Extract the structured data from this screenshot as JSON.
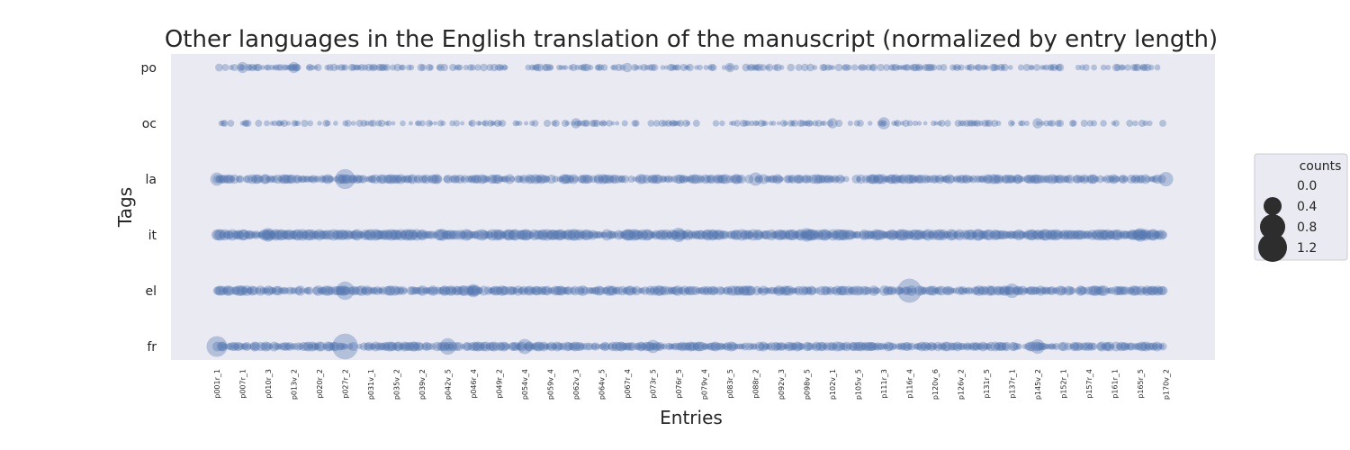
{
  "chart_data": {
    "type": "scatter",
    "title": "Other languages in the English translation of the manuscript (normalized by entry length)",
    "xlabel": "Entries",
    "ylabel": "Tags",
    "categories_y": [
      "po",
      "oc",
      "la",
      "it",
      "el",
      "fr"
    ],
    "x_tick_labels": [
      "p001r_1",
      "p007r_1",
      "p010r_3",
      "p013v_2",
      "p020r_2",
      "p027r_2",
      "p031v_1",
      "p035v_2",
      "p039v_2",
      "p042v_5",
      "p046r_4",
      "p049r_2",
      "p054v_4",
      "p059v_4",
      "p062v_3",
      "p064v_5",
      "p067r_4",
      "p073r_5",
      "p076r_5",
      "p079v_4",
      "p083r_5",
      "p088r_2",
      "p092v_3",
      "p098v_5",
      "p102v_1",
      "p105v_5",
      "p111r_3",
      "p116r_4",
      "p120v_6",
      "p126v_2",
      "p131r_5",
      "p137r_1",
      "p145v_2",
      "p152r_1",
      "p157r_4",
      "p161r_1",
      "p165r_5",
      "p170v_2"
    ],
    "legend": {
      "title": "counts",
      "placement": "right",
      "entries": [
        {
          "label": "0.0",
          "value": 0.0
        },
        {
          "label": "0.4",
          "value": 0.4
        },
        {
          "label": "0.8",
          "value": 0.8
        },
        {
          "label": "1.2",
          "value": 1.2
        }
      ]
    },
    "marker_color": "#4c72b0",
    "background_color": "#eaeaf2",
    "grid": false,
    "series": [
      {
        "tag": "po",
        "density": 0.55,
        "typical": 0.06,
        "highlights": [
          {
            "tick": "p007r_1",
            "value": 0.12
          },
          {
            "tick": "p013v_2",
            "value": 0.12
          },
          {
            "tick": "p067r_4",
            "value": 0.08
          },
          {
            "tick": "p083r_5",
            "value": 0.08
          }
        ]
      },
      {
        "tag": "oc",
        "density": 0.4,
        "typical": 0.05,
        "highlights": [
          {
            "tick": "p062v_3",
            "value": 0.1
          },
          {
            "tick": "p111r_3",
            "value": 0.16
          },
          {
            "tick": "p145v_2",
            "value": 0.1
          },
          {
            "tick": "p102v_1",
            "value": 0.1
          }
        ]
      },
      {
        "tag": "la",
        "density": 0.85,
        "typical": 0.12,
        "highlights": [
          {
            "tick": "p001r_1",
            "value": 0.2
          },
          {
            "tick": "p027r_2",
            "value": 0.55
          },
          {
            "tick": "p088r_2",
            "value": 0.2
          },
          {
            "tick": "p170v_2",
            "value": 0.25
          }
        ]
      },
      {
        "tag": "it",
        "density": 0.97,
        "typical": 0.18,
        "highlights": [
          {
            "tick": "p010r_3",
            "value": 0.22
          },
          {
            "tick": "p076r_5",
            "value": 0.25
          },
          {
            "tick": "p098v_5",
            "value": 0.22
          },
          {
            "tick": "p165r_5",
            "value": 0.22
          }
        ]
      },
      {
        "tag": "el",
        "density": 0.9,
        "typical": 0.14,
        "highlights": [
          {
            "tick": "p027r_2",
            "value": 0.45
          },
          {
            "tick": "p116r_4",
            "value": 0.85
          },
          {
            "tick": "p137r_1",
            "value": 0.25
          },
          {
            "tick": "p046r_4",
            "value": 0.2
          }
        ]
      },
      {
        "tag": "fr",
        "density": 0.88,
        "typical": 0.12,
        "highlights": [
          {
            "tick": "p001r_1",
            "value": 0.6
          },
          {
            "tick": "p027r_2",
            "value": 1.0
          },
          {
            "tick": "p042v_5",
            "value": 0.35
          },
          {
            "tick": "p054v_4",
            "value": 0.28
          },
          {
            "tick": "p073r_5",
            "value": 0.2
          },
          {
            "tick": "p145v_2",
            "value": 0.25
          }
        ]
      }
    ]
  }
}
